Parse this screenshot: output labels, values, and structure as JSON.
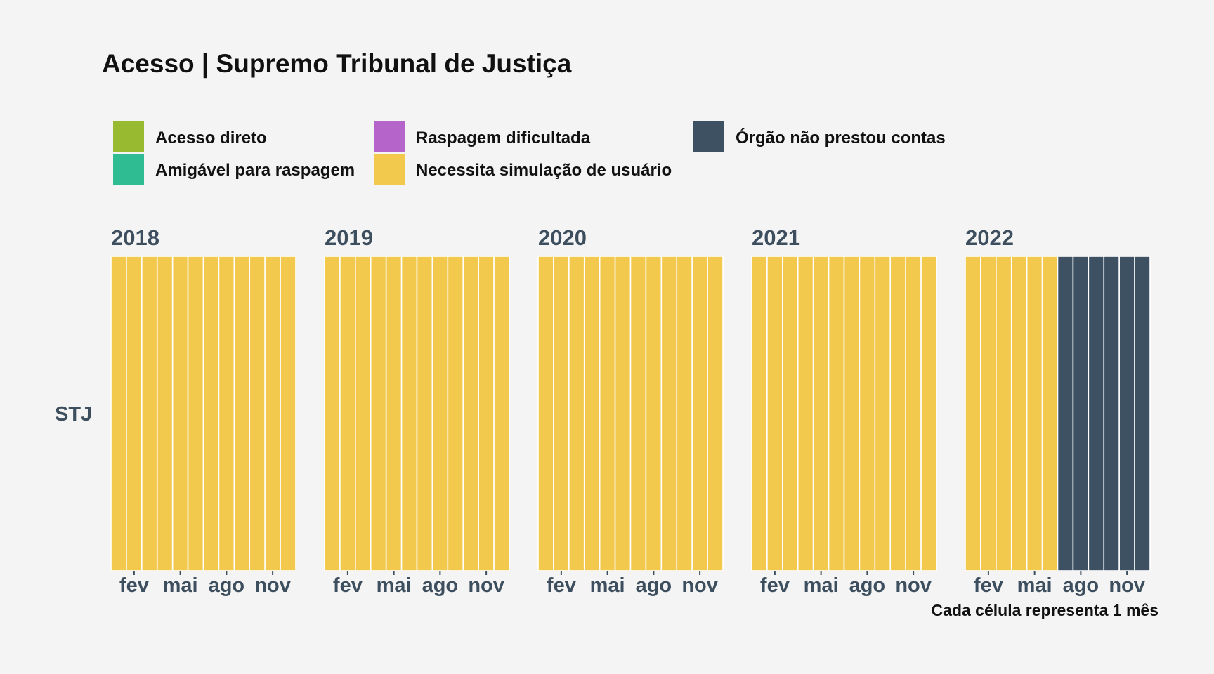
{
  "title": "Acesso | Supremo Tribunal de Justiça",
  "caption": "Cada célula representa 1 mês",
  "legend": [
    {
      "label": "Acesso direto",
      "color": "#97ba31"
    },
    {
      "label": "Amigável para raspagem",
      "color": "#2fbc93"
    },
    {
      "label": "Raspagem dificultada",
      "color": "#b565c9"
    },
    {
      "label": "Necessita simulação de usuário",
      "color": "#f2c84d"
    },
    {
      "label": "Órgão não prestou contas",
      "color": "#3d5162"
    }
  ],
  "chart_data": {
    "type": "heatmap",
    "title": "Acesso | Supremo Tribunal de Justiça",
    "y_categories": [
      "STJ"
    ],
    "x_tick_labels": [
      "fev",
      "mai",
      "ago",
      "nov"
    ],
    "x_tick_months": [
      2,
      5,
      8,
      11
    ],
    "facets": [
      {
        "year": "2018",
        "months": [
          "Necessita simulação de usuário",
          "Necessita simulação de usuário",
          "Necessita simulação de usuário",
          "Necessita simulação de usuário",
          "Necessita simulação de usuário",
          "Necessita simulação de usuário",
          "Necessita simulação de usuário",
          "Necessita simulação de usuário",
          "Necessita simulação de usuário",
          "Necessita simulação de usuário",
          "Necessita simulação de usuário",
          "Necessita simulação de usuário"
        ]
      },
      {
        "year": "2019",
        "months": [
          "Necessita simulação de usuário",
          "Necessita simulação de usuário",
          "Necessita simulação de usuário",
          "Necessita simulação de usuário",
          "Necessita simulação de usuário",
          "Necessita simulação de usuário",
          "Necessita simulação de usuário",
          "Necessita simulação de usuário",
          "Necessita simulação de usuário",
          "Necessita simulação de usuário",
          "Necessita simulação de usuário",
          "Necessita simulação de usuário"
        ]
      },
      {
        "year": "2020",
        "months": [
          "Necessita simulação de usuário",
          "Necessita simulação de usuário",
          "Necessita simulação de usuário",
          "Necessita simulação de usuário",
          "Necessita simulação de usuário",
          "Necessita simulação de usuário",
          "Necessita simulação de usuário",
          "Necessita simulação de usuário",
          "Necessita simulação de usuário",
          "Necessita simulação de usuário",
          "Necessita simulação de usuário",
          "Necessita simulação de usuário"
        ]
      },
      {
        "year": "2021",
        "months": [
          "Necessita simulação de usuário",
          "Necessita simulação de usuário",
          "Necessita simulação de usuário",
          "Necessita simulação de usuário",
          "Necessita simulação de usuário",
          "Necessita simulação de usuário",
          "Necessita simulação de usuário",
          "Necessita simulação de usuário",
          "Necessita simulação de usuário",
          "Necessita simulação de usuário",
          "Necessita simulação de usuário",
          "Necessita simulação de usuário"
        ]
      },
      {
        "year": "2022",
        "months": [
          "Necessita simulação de usuário",
          "Necessita simulação de usuário",
          "Necessita simulação de usuário",
          "Necessita simulação de usuário",
          "Necessita simulação de usuário",
          "Necessita simulação de usuário",
          "Órgão não prestou contas",
          "Órgão não prestou contas",
          "Órgão não prestou contas",
          "Órgão não prestou contas",
          "Órgão não prestou contas",
          "Órgão não prestou contas"
        ]
      }
    ],
    "legend_position": "top",
    "grid": false
  }
}
